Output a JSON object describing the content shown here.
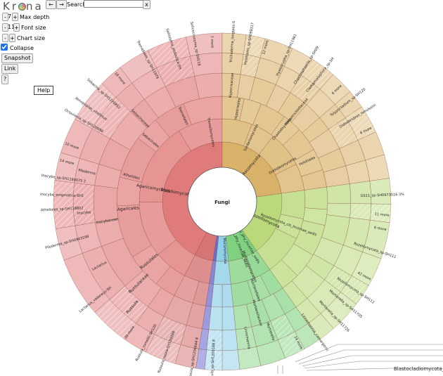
{
  "app": {
    "logo": "Krona",
    "logo_letters": [
      "K",
      "r",
      "o",
      "n",
      "a"
    ]
  },
  "nav": {
    "back": "←",
    "forward": "→"
  },
  "search": {
    "label": "Search:",
    "value": "",
    "clear": "x"
  },
  "controls": {
    "max_depth": {
      "value": "7",
      "label": "Max depth",
      "minus": "-",
      "plus": "+"
    },
    "font_size": {
      "value": "11",
      "label": "Font size",
      "minus": "-",
      "plus": "+"
    },
    "chart_size": {
      "label": "Chart size",
      "minus": "-",
      "plus": "+"
    },
    "collapse": {
      "label": "Collapse",
      "checked": true
    },
    "snapshot": "Snapshot",
    "link": "Link",
    "help_button": "?",
    "help_tooltip": "Help"
  },
  "chart": {
    "root": "Fungi",
    "phylum": [
      "Basidiomycota",
      "Ascomycota",
      "Rozellomycota",
      "GS01_phy_Incertae_sedis",
      "Fungi_phy_Incertae_sedis",
      "Mortierellomycota",
      "Mucoromycota",
      "Blastocladiomycota"
    ],
    "class": [
      "Agaricomycetes",
      "Tremellomycetes",
      "Sordariomycetes",
      "Dothideomycetes",
      "Eurotiomycetes",
      "Rozellomycota_cls_Incertae_sedis",
      "Mortierellomycetes",
      "Pucciniomycetes"
    ],
    "order": [
      "Russulales",
      "Agaricales",
      "Atheliales",
      "Sebacinales",
      "Thelephorales",
      "Hypocreales",
      "Chaetothyriales",
      "Helotiales",
      "Mortierellales",
      "Tremellales",
      "Trichosporonales",
      "Sordariales",
      "Pleosporales"
    ],
    "family": [
      "Russulaceae",
      "Inocybaceae",
      "Tricholomataceae",
      "Sebacinaceae",
      "Thelephoraceae",
      "Trichosporonaceae",
      "Hypocreaceae",
      "Herpotrichiellaceae",
      "Mortierellaceae",
      "Lasiosphaeriaceae"
    ],
    "genus": [
      "Russula",
      "Lactarius",
      "Inocybe",
      "Piloderma",
      "Sebacina",
      "Tremellales_fam_sedis",
      "Leotiomycetes",
      "Mortierella",
      "Linnemannia",
      "Chaetosphaeria"
    ],
    "leaves_left": [
      "Russula_sp-SH1200188 8%",
      "Russula_sp-SH1206644 8%",
      "Russula_rosea-SH1200669 3%",
      "Russula_romellii-SH1200640 1%",
      "30 more",
      "Lactarius_vellereus-SH1189451 3%",
      "Piloderma_sp-SH0943198 5%",
      "Atheliales_sp-SH1188021 0.9%",
      "Inocybe_enigmatica-SH1204434 2%",
      "Inocybe_sp-SH1180075 2%",
      "14 more",
      "10 more",
      "Octaviania_sp-SH1206984 3%",
      "Xenopoplas_vitellinus-SH1206881 0.8%",
      "Sebacina_sp-SH1220852 1%",
      "18 more",
      "Tremellales_sp-SH1197613 4%",
      "Saitozyma_podzolica-SH1196070 2%",
      "Solicoccozyma_sp-SH1189987 3%",
      "7 more"
    ],
    "leaves_right": [
      "Trichoderma_longipes-SH1189102 5 more",
      "Helotiales_sp-SH0993173 3 more",
      "12 more",
      "Hyaloscypha_sp-SH1196119 1%",
      "Chaetosphaeria_sp-SH0985987 1%",
      "Cladophialophora_sp-SH0983119 1%",
      "6 more",
      "Tolypocladium_sp-SH1203002 0.9%",
      "Oidiodendron_tenuissimum-SH1204234 1%",
      "6 more",
      "GS11_sp-SH0973516 3%",
      "11 more",
      "6 more",
      "Rozellomycota_sp-SH1113888 2%",
      "42 more",
      "Rozellomycota_sp-SH1121966 1%",
      "Mortierella_sp-SH1170556 1%",
      "Mortierella_sp-SH1172658 1%",
      "Linnemannia_camargensis-SH1197113 5%",
      "14 more",
      "Blastocladiomycota_gen_"
    ],
    "colors": {
      "basidio": "#e07b7b",
      "asco": "#d9b26a",
      "rozello": "#b9d97a",
      "mortier": "#7fd17f",
      "mucoro": "#8fd0e8",
      "blasto": "#6a6ad0"
    }
  }
}
